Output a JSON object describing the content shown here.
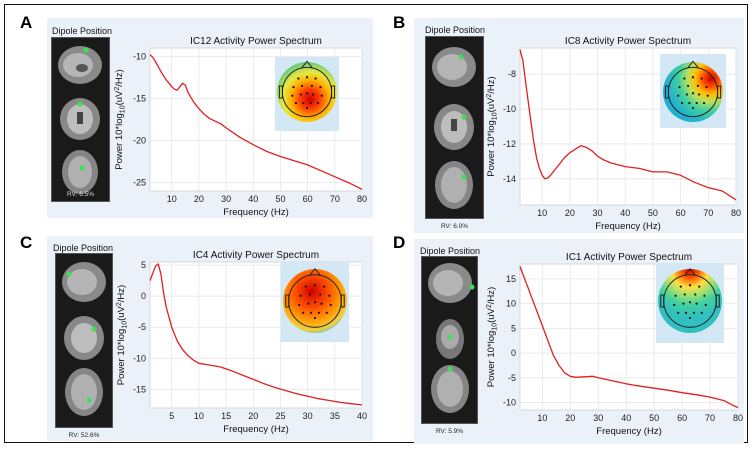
{
  "figure": {
    "panel_letters": [
      "A",
      "B",
      "C",
      "D"
    ]
  },
  "chart_data": [
    {
      "type": "line",
      "panel": "A",
      "title": "IC12 Activity Power Spectrum",
      "xlabel": "Frequency (Hz)",
      "ylabel": "Power 10*log10(uV2/Hz)",
      "xlim": [
        2,
        80
      ],
      "ylim": [
        -26,
        -9
      ],
      "xticks": [
        10,
        20,
        30,
        40,
        50,
        60,
        70,
        80
      ],
      "yticks": [
        -10,
        -15,
        -20,
        -25
      ],
      "series": [
        {
          "name": "IC12",
          "color": "#e02020",
          "x": [
            2,
            3,
            4,
            5,
            6,
            7,
            8,
            9,
            10,
            11,
            12,
            13,
            14,
            15,
            16,
            18,
            20,
            22,
            24,
            26,
            28,
            30,
            35,
            40,
            45,
            50,
            55,
            60,
            65,
            70,
            75,
            80
          ],
          "y": [
            -9.8,
            -10.1,
            -10.6,
            -11.2,
            -11.8,
            -12.3,
            -12.8,
            -13.2,
            -13.6,
            -13.9,
            -14.0,
            -13.6,
            -13.2,
            -13.4,
            -14.3,
            -15.4,
            -16.2,
            -16.9,
            -17.4,
            -17.7,
            -18.0,
            -18.5,
            -19.6,
            -20.5,
            -21.3,
            -21.9,
            -22.4,
            -22.9,
            -23.6,
            -24.3,
            -25.0,
            -25.8
          ]
        }
      ],
      "dipole": {
        "title": "Dipole Position",
        "rv": "RV: 6.5%"
      },
      "topomap": "posterior-central-positive"
    },
    {
      "type": "line",
      "panel": "B",
      "title": "IC8 Activity Power Spectrum",
      "xlabel": "Frequency (Hz)",
      "ylabel": "Power 10*log10(uV2/Hz)",
      "xlim": [
        2,
        80
      ],
      "ylim": [
        -15.5,
        -6.5
      ],
      "xticks": [
        10,
        20,
        30,
        40,
        50,
        60,
        70,
        80
      ],
      "yticks": [
        -8,
        -10,
        -12,
        -14
      ],
      "series": [
        {
          "name": "IC8",
          "color": "#e02020",
          "x": [
            2,
            3,
            4,
            5,
            6,
            7,
            8,
            9,
            10,
            11,
            12,
            13,
            14,
            16,
            18,
            20,
            22,
            24,
            26,
            28,
            30,
            32,
            35,
            40,
            45,
            50,
            55,
            60,
            65,
            70,
            75,
            80
          ],
          "y": [
            -6.6,
            -7.2,
            -8.4,
            -9.6,
            -10.8,
            -11.9,
            -12.8,
            -13.4,
            -13.8,
            -14.0,
            -13.95,
            -13.8,
            -13.6,
            -13.2,
            -12.8,
            -12.5,
            -12.3,
            -12.1,
            -12.2,
            -12.4,
            -12.7,
            -12.9,
            -13.1,
            -13.3,
            -13.4,
            -13.6,
            -13.6,
            -13.8,
            -14.2,
            -14.5,
            -14.7,
            -15.2
          ]
        }
      ],
      "dipole": {
        "title": "Dipole Position",
        "rv": "RV: 6.0%"
      },
      "topomap": "right-frontal-positive"
    },
    {
      "type": "line",
      "panel": "C",
      "title": "IC4 Activity Power Spectrum",
      "xlabel": "Frequency (Hz)",
      "ylabel": "Power 10*log10(uV2/Hz)",
      "xlim": [
        1,
        40
      ],
      "ylim": [
        -18,
        5.5
      ],
      "xticks": [
        5,
        10,
        15,
        20,
        25,
        30,
        35,
        40
      ],
      "yticks": [
        5,
        0,
        -5,
        -10,
        -15
      ],
      "series": [
        {
          "name": "IC4",
          "color": "#e02020",
          "x": [
            1,
            2,
            2.5,
            3,
            3.5,
            4,
            5,
            6,
            7,
            8,
            9,
            10,
            12,
            14,
            16,
            18,
            20,
            22,
            24,
            26,
            28,
            30,
            32,
            34,
            36,
            38,
            40
          ],
          "y": [
            2.5,
            4.8,
            5.2,
            3.6,
            0.5,
            -1.8,
            -5.0,
            -7.2,
            -8.6,
            -9.6,
            -10.3,
            -10.8,
            -11.1,
            -11.4,
            -12.0,
            -12.7,
            -13.4,
            -14.1,
            -14.7,
            -15.2,
            -15.7,
            -16.1,
            -16.5,
            -16.8,
            -17.1,
            -17.3,
            -17.5
          ]
        }
      ],
      "dipole": {
        "title": "Dipole Position",
        "rv": "RV: 52.6%"
      },
      "topomap": "diffuse-positive-frontal"
    },
    {
      "type": "line",
      "panel": "D",
      "title": "IC1 Activity Power Spectrum",
      "xlabel": "Frequency (Hz)",
      "ylabel": "Power 10*log10(uV2/Hz)",
      "xlim": [
        2,
        80
      ],
      "ylim": [
        -11.5,
        18
      ],
      "xticks": [
        10,
        20,
        30,
        40,
        50,
        60,
        70,
        80
      ],
      "yticks": [
        15,
        10,
        5,
        0,
        -5,
        -10
      ],
      "series": [
        {
          "name": "IC1",
          "color": "#e02020",
          "x": [
            2,
            3,
            4,
            5,
            6,
            8,
            10,
            12,
            14,
            16,
            18,
            20,
            22,
            25,
            28,
            30,
            35,
            40,
            45,
            50,
            55,
            60,
            65,
            70,
            75,
            78,
            80
          ],
          "y": [
            17.5,
            16.0,
            14.5,
            13.0,
            11.5,
            8.5,
            5.5,
            2.5,
            -0.5,
            -2.5,
            -4.0,
            -4.7,
            -4.9,
            -4.8,
            -4.7,
            -5.0,
            -5.6,
            -6.2,
            -6.7,
            -7.1,
            -7.5,
            -8.0,
            -8.4,
            -8.9,
            -9.6,
            -10.5,
            -11.0
          ]
        }
      ],
      "dipole": {
        "title": "Dipole Position",
        "rv": "RV: 5.9%"
      },
      "topomap": "frontal-positive"
    }
  ]
}
